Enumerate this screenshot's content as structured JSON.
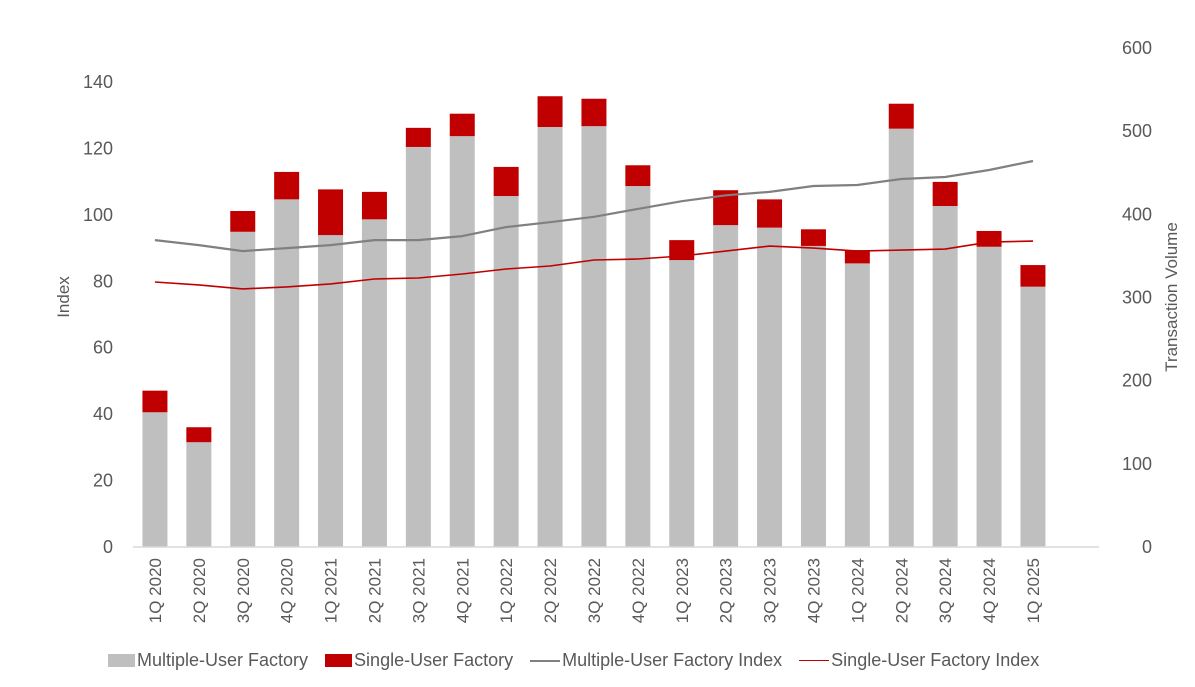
{
  "chart_data": {
    "type": "bar+line",
    "title": "",
    "categories": [
      "1Q 2020",
      "2Q 2020",
      "3Q 2020",
      "4Q 2020",
      "1Q 2021",
      "2Q 2021",
      "3Q 2021",
      "4Q 2021",
      "1Q 2022",
      "2Q 2022",
      "3Q 2022",
      "4Q 2022",
      "1Q 2023",
      "2Q 2023",
      "3Q 2023",
      "4Q 2023",
      "1Q 2024",
      "2Q 2024",
      "3Q 2024",
      "4Q 2024",
      "1Q 2025"
    ],
    "series": [
      {
        "name": "Multiple-User Factory",
        "type": "stacked-bar",
        "axis": "right",
        "color": "#bfbfbf",
        "values": [
          162,
          126,
          379,
          418,
          375,
          394,
          481,
          494,
          422,
          505,
          506,
          434,
          345,
          387,
          384,
          362,
          341,
          503,
          410,
          361,
          313
        ]
      },
      {
        "name": "Single-User Factory",
        "type": "stacked-bar",
        "axis": "right",
        "color": "#c00000",
        "values": [
          26,
          18,
          25,
          33,
          55,
          33,
          23,
          27,
          35,
          37,
          33,
          25,
          24,
          42,
          34,
          20,
          16,
          30,
          29,
          19,
          26
        ]
      },
      {
        "name": "Multiple-User Factory Index",
        "type": "line",
        "axis": "left",
        "color": "#808080",
        "values": [
          92.4,
          90.9,
          89.1,
          90.0,
          90.9,
          92.4,
          92.4,
          93.6,
          96.3,
          97.8,
          99.4,
          101.8,
          104.1,
          105.9,
          106.9,
          108.7,
          109.0,
          110.8,
          111.4,
          113.5,
          116.2
        ]
      },
      {
        "name": "Single-User Factory Index",
        "type": "line",
        "axis": "left",
        "color": "#c00000",
        "values": [
          79.8,
          78.9,
          77.7,
          78.3,
          79.2,
          80.7,
          81.0,
          82.2,
          83.7,
          84.6,
          86.4,
          86.7,
          87.6,
          89.1,
          90.6,
          90.0,
          89.1,
          89.4,
          89.7,
          91.8,
          92.1
        ]
      }
    ],
    "ylabel": "Index",
    "ylabel_right": "Transaction Volume",
    "ylim": [
      0,
      140
    ],
    "ylim_right": [
      0,
      600
    ],
    "yticks": [
      0,
      20,
      40,
      60,
      80,
      100,
      120,
      140
    ],
    "yticks_right": [
      0,
      100,
      200,
      300,
      400,
      500,
      600
    ],
    "grid": false,
    "legend_position": "bottom"
  },
  "legend": {
    "items": [
      {
        "label": "Multiple-User Factory",
        "kind": "box",
        "color": "#bfbfbf"
      },
      {
        "label": "Single-User Factory",
        "kind": "box",
        "color": "#c00000"
      },
      {
        "label": "Multiple-User Factory Index",
        "kind": "line",
        "color": "#808080"
      },
      {
        "label": "Single-User Factory Index",
        "kind": "line",
        "color": "#c00000"
      }
    ]
  }
}
